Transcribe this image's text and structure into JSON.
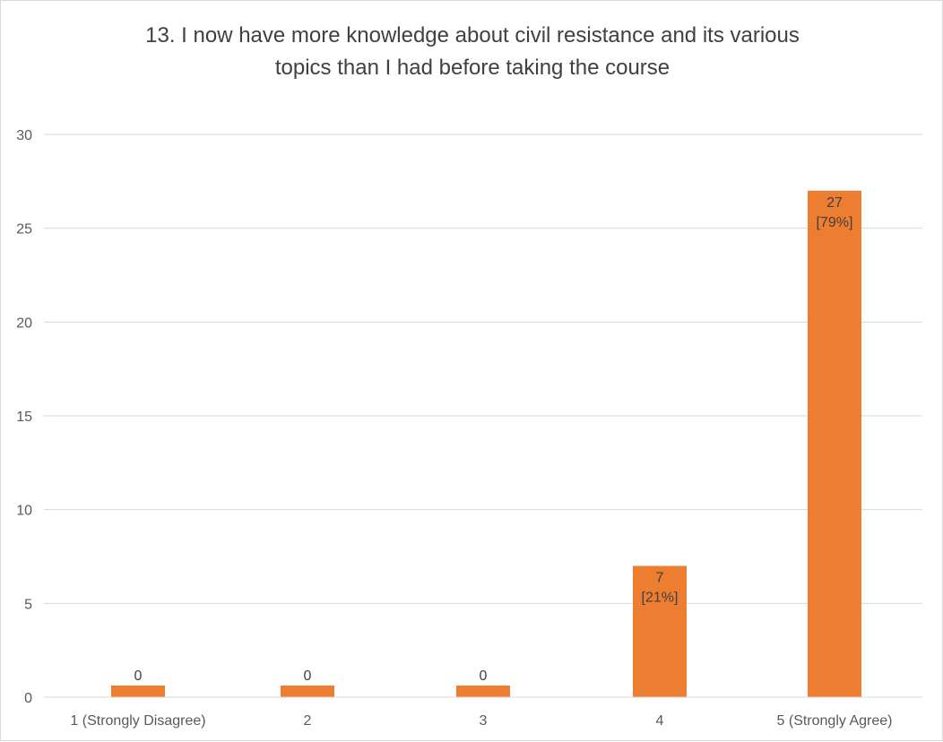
{
  "chart_data": {
    "type": "bar",
    "title_lines": [
      "13. I now have more knowledge about civil resistance and its various",
      "topics than I had before taking the course"
    ],
    "categories": [
      "1 (Strongly Disagree)",
      "2",
      "3",
      "4",
      "5 (Strongly Agree)"
    ],
    "values": [
      0,
      0,
      0,
      7,
      27
    ],
    "data_labels": [
      [
        "0"
      ],
      [
        "0"
      ],
      [
        "0"
      ],
      [
        "7",
        "[21%]"
      ],
      [
        "27",
        "[79%]"
      ]
    ],
    "ylim": [
      0,
      30
    ],
    "yticks": [
      0,
      5,
      10,
      15,
      20,
      25,
      30
    ],
    "grid": true,
    "bar_color": "#ed7d31",
    "grid_color": "#d9d9d9"
  }
}
